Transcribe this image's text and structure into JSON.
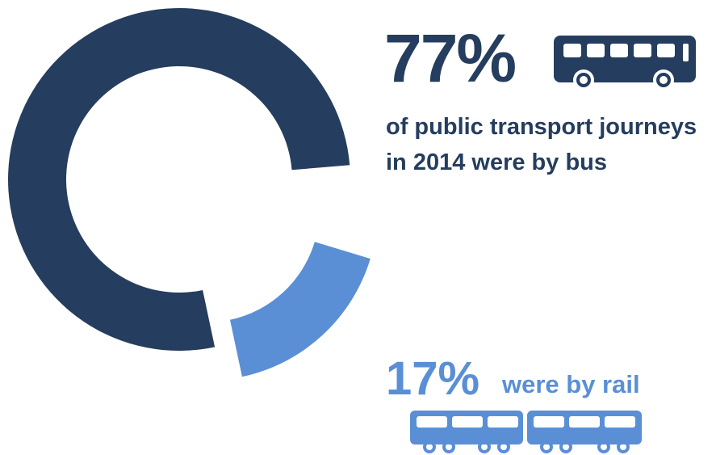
{
  "chart_data": {
    "type": "donut",
    "values": [
      77,
      17
    ],
    "value_labels": [
      "77%",
      "17%"
    ],
    "colors": [
      "#253d5e",
      "#5a8fd6"
    ],
    "annotations": [
      "of public transport journeys in 2014 were by bus",
      "were by rail"
    ]
  }
}
